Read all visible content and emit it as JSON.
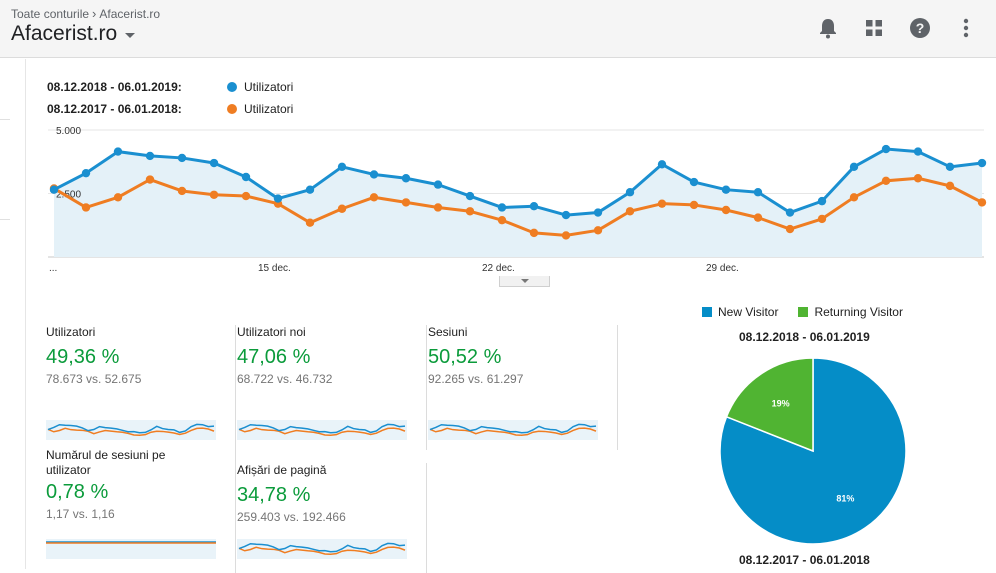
{
  "header": {
    "breadcrumb_root": "Toate conturile",
    "breadcrumb_child": "Afacerist.ro",
    "account_name": "Afacerist.ro",
    "icons": [
      "bell-icon",
      "apps-grid-icon",
      "help-icon",
      "more-vert-icon"
    ]
  },
  "legend": {
    "current_range": "08.12.2018 - 06.01.2019:",
    "previous_range": "08.12.2017 - 06.01.2018:",
    "current_metric": "Utilizatori",
    "previous_metric": "Utilizatori",
    "current_color": "#1a8fd0",
    "previous_color": "#ef7d22"
  },
  "chart_data": {
    "type": "line",
    "ylabel": "",
    "y_ticks": [
      "5.000",
      "2.500"
    ],
    "x_tick_labels": [
      "...",
      "15 dec.",
      "22 dec.",
      "29 dec."
    ],
    "ylim": [
      0,
      5000
    ],
    "grid": true,
    "series": [
      {
        "name": "Utilizatori",
        "color": "#1a8fd0",
        "values": [
          2650,
          3300,
          4150,
          3980,
          3900,
          3700,
          3150,
          2300,
          2650,
          3550,
          3250,
          3100,
          2850,
          2400,
          1950,
          2000,
          1650,
          1750,
          2550,
          3650,
          2950,
          2650,
          2550,
          1750,
          2200,
          3550,
          4250,
          4150,
          3550,
          3700
        ]
      },
      {
        "name": "Utilizatori",
        "color": "#ef7d22",
        "values": [
          2700,
          1950,
          2350,
          3050,
          2600,
          2450,
          2400,
          2100,
          1350,
          1900,
          2350,
          2150,
          1950,
          1800,
          1450,
          950,
          850,
          1050,
          1800,
          2100,
          2050,
          1850,
          1550,
          1100,
          1500,
          2350,
          3000,
          3100,
          2800,
          2150
        ]
      }
    ]
  },
  "metrics": [
    {
      "label": "Utilizatori",
      "value": "49,36 %",
      "compare": "78.673 vs. 52.675"
    },
    {
      "label": "Utilizatori noi",
      "value": "47,06 %",
      "compare": "68.722 vs. 46.732"
    },
    {
      "label": "Sesiuni",
      "value": "50,52 %",
      "compare": "92.265 vs. 61.297"
    },
    {
      "label": "Numărul de sesiuni pe utilizator",
      "value": "0,78 %",
      "compare": "1,17 vs. 1,16"
    },
    {
      "label": "Afișări de pagină",
      "value": "34,78 %",
      "compare": "259.403 vs. 192.466"
    }
  ],
  "pie": {
    "legend_new": "New Visitor",
    "legend_returning": "Returning Visitor",
    "new_color": "#058dc7",
    "returning_color": "#50b432",
    "range_current": "08.12.2018 - 06.01.2019",
    "range_previous": "08.12.2017 - 06.01.2018",
    "chart_data": {
      "type": "pie",
      "slices": [
        {
          "name": "New Visitor",
          "value": 81,
          "label": "81%"
        },
        {
          "name": "Returning Visitor",
          "value": 19,
          "label": "19%"
        }
      ]
    }
  }
}
